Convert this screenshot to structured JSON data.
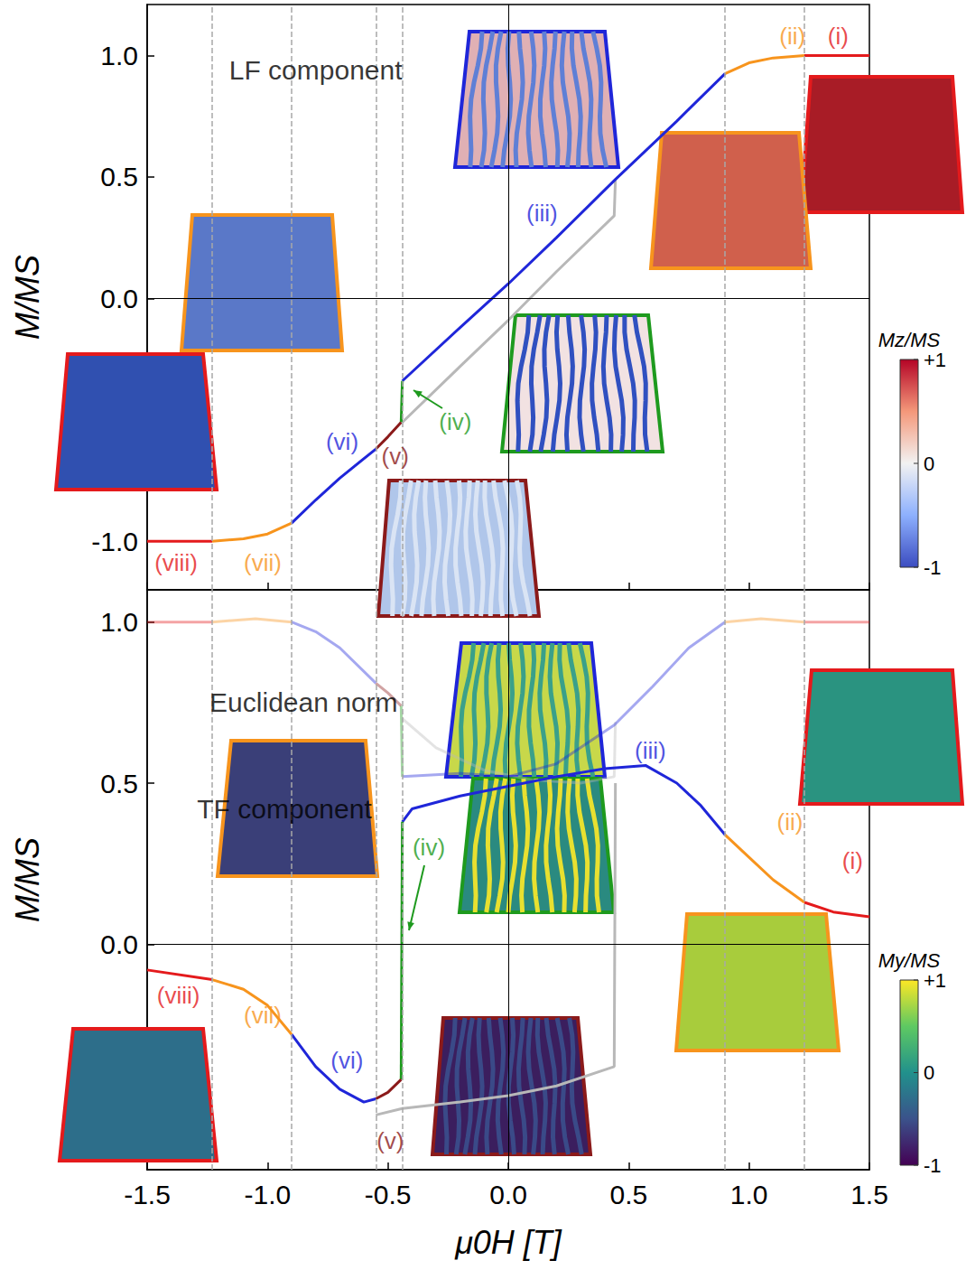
{
  "chart_data": [
    {
      "type": "line",
      "ylabel": "M/MS",
      "tick_labels": "y",
      "xlim": [
        -1.5,
        1.5
      ],
      "xticks": [
        -1.5,
        {
          "value": -1,
          "label": "-1.0"
        },
        -0.5,
        {
          "value": 0,
          "label": "0.0"
        },
        0.5,
        {
          "value": 1,
          "label": "1.0"
        },
        1.5
      ],
      "ylim": [
        -1.2,
        1.21
      ],
      "yticks": [
        {
          "value": -1,
          "label": "-1.0"
        },
        {
          "value": 0,
          "label": "0.0"
        },
        0.5,
        {
          "value": 1,
          "label": "1.0"
        }
      ],
      "vlines": [
        -1.23,
        -0.9,
        -0.55,
        -0.44,
        0.9,
        1.23
      ],
      "series": [
        {
          "color": "#b8b8b8",
          "values": [
            [
              -0.44,
              -0.51
            ],
            [
              -0.2,
              -0.28
            ],
            [
              0.0,
              -0.09
            ],
            [
              0.2,
              0.11
            ],
            [
              0.44,
              0.34
            ],
            [
              0.445,
              0.49
            ]
          ]
        },
        {
          "color": "#e41a1c",
          "values": [
            [
              1.23,
              1.0
            ],
            [
              1.5,
              1.0
            ]
          ]
        },
        {
          "color": "#f7941d",
          "values": [
            [
              0.9,
              0.925
            ],
            [
              1.0,
              0.97
            ],
            [
              1.1,
              0.99
            ],
            [
              1.23,
              1.0
            ]
          ]
        },
        {
          "color": "#1f26d9",
          "values": [
            [
              -0.44,
              -0.34
            ],
            [
              -0.2,
              -0.12
            ],
            [
              0.0,
              0.06
            ],
            [
              0.2,
              0.25
            ],
            [
              0.445,
              0.49
            ],
            [
              0.7,
              0.73
            ],
            [
              0.9,
              0.925
            ]
          ]
        },
        {
          "color": "#1e9a1e",
          "values": [
            [
              -0.445,
              -0.51
            ],
            [
              -0.44,
              -0.34
            ]
          ]
        },
        {
          "color": "#8b1a1a",
          "values": [
            [
              -0.55,
              -0.62
            ],
            [
              -0.5,
              -0.57
            ],
            [
              -0.445,
              -0.51
            ]
          ]
        },
        {
          "color": "#1f26d9",
          "values": [
            [
              -0.9,
              -0.925
            ],
            [
              -0.8,
              -0.83
            ],
            [
              -0.7,
              -0.74
            ],
            [
              -0.55,
              -0.62
            ]
          ]
        },
        {
          "color": "#f7941d",
          "values": [
            [
              -1.23,
              -1.0
            ],
            [
              -1.1,
              -0.99
            ],
            [
              -1.0,
              -0.97
            ],
            [
              -0.9,
              -0.925
            ]
          ]
        },
        {
          "color": "#e41a1c",
          "values": [
            [
              -1.5,
              -1.0
            ],
            [
              -1.23,
              -1.0
            ]
          ]
        }
      ],
      "annotations": [
        {
          "text": "LF component",
          "x": -0.8,
          "y": 0.94,
          "color": "#000000"
        },
        {
          "text": "(i)",
          "x": 1.37,
          "y": 1.08,
          "color": "#e41a1c"
        },
        {
          "text": "(ii)",
          "x": 1.18,
          "y": 1.08,
          "color": "#f7941d"
        },
        {
          "text": "(iii)",
          "x": 0.14,
          "y": 0.35,
          "color": "#1f26d9"
        },
        {
          "text": "(iv)",
          "x": -0.22,
          "y": -0.51,
          "color": "#1e9a1e"
        },
        {
          "text": "(v)",
          "x": -0.47,
          "y": -0.65,
          "color": "#8b1a1a"
        },
        {
          "text": "(vi)",
          "x": -0.69,
          "y": -0.59,
          "color": "#1f26d9"
        },
        {
          "text": "(vii)",
          "x": -1.02,
          "y": -1.09,
          "color": "#f7941d"
        },
        {
          "text": "(viii)",
          "x": -1.38,
          "y": -1.09,
          "color": "#e41a1c"
        }
      ],
      "colorbar": {
        "title": "Mz/MS",
        "range": [
          -1,
          1
        ],
        "ticks": [
          {
            "value": 1,
            "label": "+1"
          },
          0,
          -1
        ],
        "colors": [
          "#3b4cc0",
          "#8db0fe",
          "#f2f2f2",
          "#f4987a",
          "#b40426"
        ]
      }
    },
    {
      "type": "line",
      "ylabel": "M/MS",
      "xlabel": "μ0H [T]",
      "tick_labels": true,
      "xlim": [
        -1.5,
        1.5
      ],
      "xticks": [
        -1.5,
        {
          "value": -1,
          "label": "-1.0"
        },
        -0.5,
        {
          "value": 0,
          "label": "0.0"
        },
        0.5,
        {
          "value": 1,
          "label": "1.0"
        },
        1.5
      ],
      "ylim": [
        -0.7,
        1.1
      ],
      "yticks": [
        {
          "value": 0,
          "label": "0.0"
        },
        0.5,
        {
          "value": 1,
          "label": "1.0"
        }
      ],
      "vlines": [
        -1.23,
        -0.9,
        -0.55,
        -0.44,
        0.9,
        1.23
      ],
      "series": [
        {
          "color": "#b8b8b8",
          "line_style": "faded",
          "values": [
            [
              -0.44,
              0.7
            ],
            [
              -0.3,
              0.61
            ],
            [
              -0.1,
              0.54
            ],
            [
              0.1,
              0.51
            ],
            [
              0.3,
              0.5
            ],
            [
              0.44,
              0.52
            ],
            [
              0.445,
              0.69
            ]
          ]
        },
        {
          "color": "#e41a1c",
          "line_style": "faded",
          "values": [
            [
              1.23,
              1.0
            ],
            [
              1.5,
              1.0
            ]
          ]
        },
        {
          "color": "#f7941d",
          "line_style": "faded",
          "values": [
            [
              0.9,
              1.0
            ],
            [
              1.05,
              1.01
            ],
            [
              1.23,
              1.0
            ]
          ]
        },
        {
          "color": "#1f26d9",
          "line_style": "faded",
          "values": [
            [
              -0.44,
              0.52
            ],
            [
              -0.2,
              0.53
            ],
            [
              0.0,
              0.52
            ],
            [
              0.2,
              0.56
            ],
            [
              0.44,
              0.68
            ],
            [
              0.6,
              0.8
            ],
            [
              0.75,
              0.92
            ],
            [
              0.9,
              1.0
            ]
          ]
        },
        {
          "color": "#1e9a1e",
          "line_style": "faded",
          "values": [
            [
              -0.445,
              0.74
            ],
            [
              -0.44,
              0.52
            ]
          ]
        },
        {
          "color": "#8b1a1a",
          "line_style": "faded",
          "values": [
            [
              -0.55,
              0.81
            ],
            [
              -0.5,
              0.78
            ],
            [
              -0.445,
              0.74
            ]
          ]
        },
        {
          "color": "#1f26d9",
          "line_style": "faded",
          "values": [
            [
              -0.9,
              1.0
            ],
            [
              -0.8,
              0.97
            ],
            [
              -0.7,
              0.92
            ],
            [
              -0.55,
              0.81
            ]
          ]
        },
        {
          "color": "#f7941d",
          "line_style": "faded",
          "values": [
            [
              -1.23,
              1.0
            ],
            [
              -1.05,
              1.01
            ],
            [
              -0.9,
              1.0
            ]
          ]
        },
        {
          "color": "#e41a1c",
          "line_style": "faded",
          "values": [
            [
              -1.5,
              1.0
            ],
            [
              -1.23,
              1.0
            ]
          ]
        },
        {
          "color": "#b8b8b8",
          "values": [
            [
              -0.55,
              -0.53
            ],
            [
              -0.44,
              -0.51
            ],
            [
              -0.2,
              -0.49
            ],
            [
              0.0,
              -0.47
            ],
            [
              0.2,
              -0.44
            ],
            [
              0.44,
              -0.38
            ],
            [
              0.445,
              0.5
            ]
          ]
        },
        {
          "color": "#e41a1c",
          "values": [
            [
              1.23,
              0.13
            ],
            [
              1.35,
              0.1
            ],
            [
              1.5,
              0.085
            ]
          ]
        },
        {
          "color": "#f7941d",
          "values": [
            [
              0.9,
              0.34
            ],
            [
              1.0,
              0.27
            ],
            [
              1.1,
              0.2
            ],
            [
              1.23,
              0.13
            ]
          ]
        },
        {
          "color": "#1f26d9",
          "values": [
            [
              -0.44,
              0.38
            ],
            [
              -0.4,
              0.42
            ],
            [
              -0.2,
              0.46
            ],
            [
              0.0,
              0.49
            ],
            [
              0.2,
              0.52
            ],
            [
              0.4,
              0.545
            ],
            [
              0.57,
              0.555
            ],
            [
              0.7,
              0.5
            ],
            [
              0.8,
              0.43
            ],
            [
              0.9,
              0.34
            ]
          ]
        },
        {
          "color": "#1e9a1e",
          "values": [
            [
              -0.445,
              -0.42
            ],
            [
              -0.44,
              0.38
            ]
          ]
        },
        {
          "color": "#8b1a1a",
          "values": [
            [
              -0.55,
              -0.48
            ],
            [
              -0.5,
              -0.46
            ],
            [
              -0.445,
              -0.42
            ]
          ]
        },
        {
          "color": "#1f26d9",
          "values": [
            [
              -0.9,
              -0.28
            ],
            [
              -0.8,
              -0.38
            ],
            [
              -0.7,
              -0.45
            ],
            [
              -0.6,
              -0.49
            ],
            [
              -0.55,
              -0.48
            ]
          ]
        },
        {
          "color": "#f7941d",
          "values": [
            [
              -1.23,
              -0.11
            ],
            [
              -1.1,
              -0.14
            ],
            [
              -1.0,
              -0.19
            ],
            [
              -0.9,
              -0.28
            ]
          ]
        },
        {
          "color": "#e41a1c",
          "values": [
            [
              -1.5,
              -0.08
            ],
            [
              -1.23,
              -0.11
            ]
          ]
        }
      ],
      "annotations": [
        {
          "text": "Euclidean norm",
          "x": -0.85,
          "y": 0.75,
          "color": "#000000"
        },
        {
          "text": "TF component",
          "x": -0.93,
          "y": 0.42,
          "color": "#000000"
        },
        {
          "text": "(i)",
          "x": 1.43,
          "y": 0.26,
          "color": "#e41a1c"
        },
        {
          "text": "(ii)",
          "x": 1.17,
          "y": 0.38,
          "color": "#f7941d"
        },
        {
          "text": "(iii)",
          "x": 0.59,
          "y": 0.6,
          "color": "#1f26d9"
        },
        {
          "text": "(iv)",
          "x": -0.33,
          "y": 0.3,
          "color": "#1e9a1e"
        },
        {
          "text": "(v)",
          "x": -0.49,
          "y": -0.61,
          "color": "#8b1a1a"
        },
        {
          "text": "(vi)",
          "x": -0.67,
          "y": -0.36,
          "color": "#1f26d9"
        },
        {
          "text": "(vii)",
          "x": -1.02,
          "y": -0.22,
          "color": "#f7941d"
        },
        {
          "text": "(viii)",
          "x": -1.37,
          "y": -0.16,
          "color": "#e41a1c"
        }
      ],
      "colorbar": {
        "title": "My/MS",
        "range": [
          -1,
          1
        ],
        "ticks": [
          {
            "value": 1,
            "label": "+1"
          },
          0,
          -1
        ],
        "colors": [
          "#440154",
          "#3b528b",
          "#21918c",
          "#5ec962",
          "#fde725"
        ]
      }
    }
  ]
}
